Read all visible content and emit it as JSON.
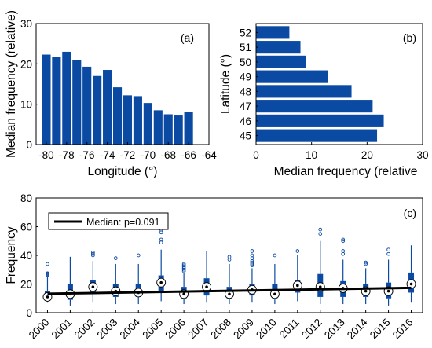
{
  "chart_data": [
    {
      "panel_label": "(a)",
      "type": "bar",
      "orientation": "vertical",
      "xlabel": "Longitude (°)",
      "ylabel": "Median frequency (relative)",
      "xlim": [
        -81,
        -64
      ],
      "ylim": [
        0,
        30
      ],
      "xticks": [
        -80,
        -78,
        -76,
        -74,
        -72,
        -70,
        -68,
        -66,
        -64
      ],
      "yticks": [
        0,
        10,
        20,
        30
      ],
      "x": [
        -80,
        -79,
        -78,
        -77,
        -76,
        -75,
        -74,
        -73,
        -72,
        -71,
        -70,
        -69,
        -68,
        -67,
        -66
      ],
      "values": [
        22.3,
        21.8,
        23.0,
        21.0,
        19.3,
        17.0,
        18.5,
        14.2,
        12.2,
        12.0,
        10.3,
        8.5,
        7.5,
        7.2,
        8.0
      ],
      "bar_color": "#0b4aa3"
    },
    {
      "panel_label": "(b)",
      "type": "bar",
      "orientation": "horizontal",
      "xlabel": "Median frequency (relative",
      "ylabel": "Latitude (°)",
      "xlim": [
        0,
        30
      ],
      "xticks": [
        0,
        10,
        20,
        30
      ],
      "categories": [
        "45",
        "46",
        "47",
        "48",
        "49",
        "50",
        "51",
        "52"
      ],
      "values": [
        21.8,
        23.0,
        21.0,
        17.2,
        13.0,
        9.0,
        8.0,
        6.0
      ],
      "bar_color": "#0b4aa3"
    },
    {
      "panel_label": "(c)",
      "type": "box",
      "ylabel": "Frequency",
      "ylim": [
        0,
        80
      ],
      "yticks": [
        0,
        20,
        40,
        60,
        80
      ],
      "categories": [
        "2000",
        "2001",
        "2002",
        "2003",
        "2004",
        "2005",
        "2006",
        "2007",
        "2008",
        "2009",
        "2010",
        "2011",
        "2012",
        "2013",
        "2014",
        "2015",
        "2016"
      ],
      "boxes": [
        {
          "min": 7,
          "q1": 9,
          "median": 11,
          "q3": 15,
          "max": 25,
          "outliers": [
            26,
            26.5,
            27,
            27.5,
            34
          ]
        },
        {
          "min": 5,
          "q1": 9,
          "median": 13,
          "q3": 20,
          "max": 39,
          "outliers": []
        },
        {
          "min": 7,
          "q1": 13,
          "median": 18,
          "q3": 23,
          "max": 36,
          "outliers": [
            40,
            41,
            42
          ]
        },
        {
          "min": 6,
          "q1": 11,
          "median": 15,
          "q3": 20,
          "max": 34,
          "outliers": [
            38
          ]
        },
        {
          "min": 6,
          "q1": 11,
          "median": 14,
          "q3": 20,
          "max": 34,
          "outliers": [
            40
          ]
        },
        {
          "min": 8,
          "q1": 15,
          "median": 21,
          "q3": 26,
          "max": 44,
          "outliers": [
            49,
            51,
            56,
            58
          ]
        },
        {
          "min": 6,
          "q1": 10,
          "median": 13,
          "q3": 18,
          "max": 28,
          "outliers": [
            29,
            30,
            31,
            32,
            33,
            34
          ]
        },
        {
          "min": 7,
          "q1": 12,
          "median": 18,
          "q3": 24,
          "max": 43,
          "outliers": []
        },
        {
          "min": 6,
          "q1": 10,
          "median": 13,
          "q3": 18,
          "max": 34,
          "outliers": [
            37,
            39
          ]
        },
        {
          "min": 7,
          "q1": 12,
          "median": 16,
          "q3": 20,
          "max": 31,
          "outliers": [
            33,
            34,
            35,
            36,
            38,
            40,
            43
          ]
        },
        {
          "min": 6,
          "q1": 10,
          "median": 13,
          "q3": 20,
          "max": 34,
          "outliers": [
            40
          ]
        },
        {
          "min": 8,
          "q1": 14,
          "median": 19,
          "q3": 23,
          "max": 40,
          "outliers": [
            43
          ]
        },
        {
          "min": 6,
          "q1": 11,
          "median": 18,
          "q3": 27,
          "max": 50,
          "outliers": [
            55,
            58
          ]
        },
        {
          "min": 6,
          "q1": 11,
          "median": 17,
          "q3": 22,
          "max": 37,
          "outliers": [
            41,
            43,
            50,
            51
          ]
        },
        {
          "min": 6,
          "q1": 11,
          "median": 15,
          "q3": 20,
          "max": 31,
          "outliers": [
            34,
            35
          ]
        },
        {
          "min": 5,
          "q1": 10,
          "median": 15,
          "q3": 21,
          "max": 37,
          "outliers": [
            41,
            44
          ]
        },
        {
          "min": 7,
          "q1": 14,
          "median": 20,
          "q3": 28,
          "max": 47,
          "outliers": []
        }
      ],
      "trend": {
        "name": "Median: p=0.091",
        "start": 13.2,
        "end": 17.3,
        "color": "#000000"
      },
      "box_color": "#0b4aa3"
    }
  ]
}
